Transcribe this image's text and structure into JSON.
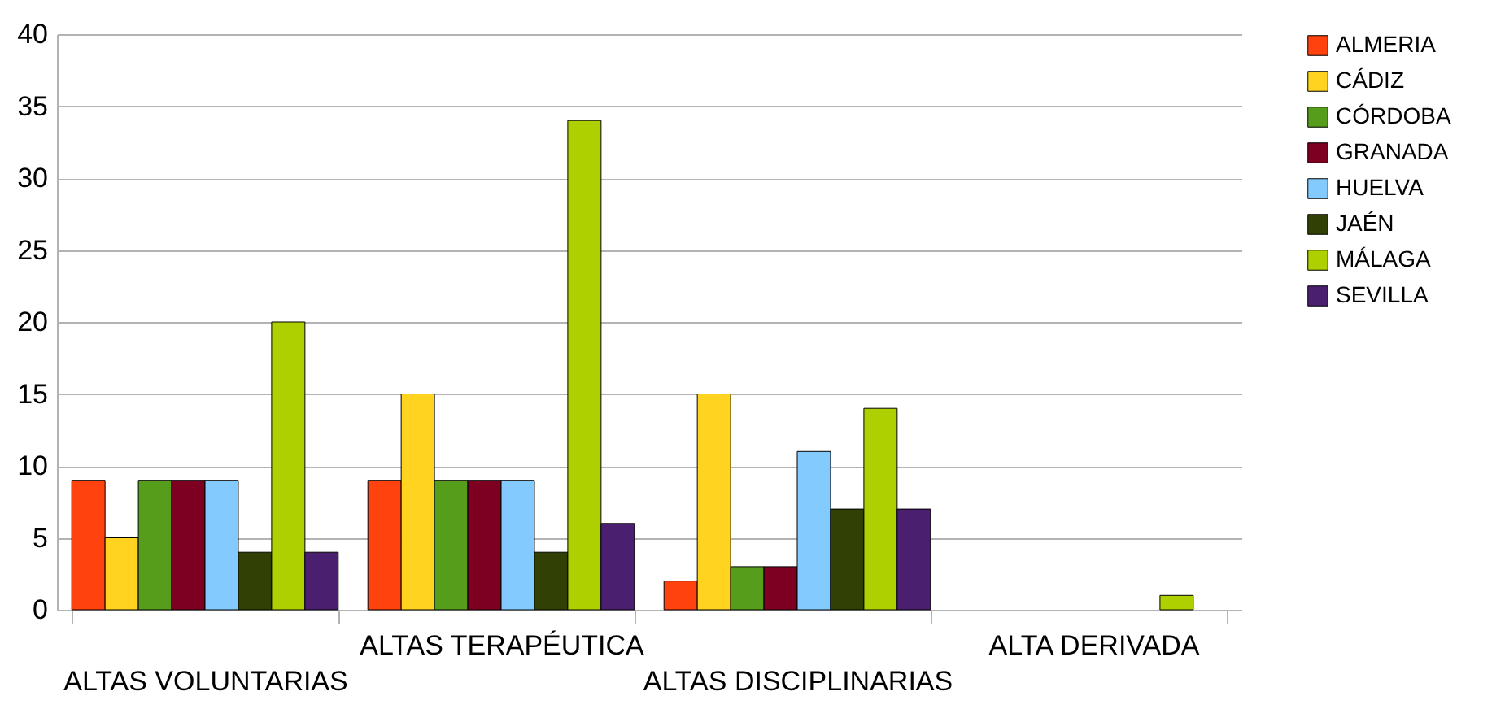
{
  "chart_data": {
    "type": "bar",
    "categories": [
      "ALTAS VOLUNTARIAS",
      "ALTAS TERAPÉUTICA",
      "ALTAS DISCIPLINARIAS",
      "ALTA DERIVADA"
    ],
    "series": [
      {
        "name": "ALMERIA",
        "color": "#ff420e",
        "values": [
          9,
          9,
          2,
          null
        ]
      },
      {
        "name": "CÁDIZ",
        "color": "#ffd320",
        "values": [
          5,
          15,
          15,
          null
        ]
      },
      {
        "name": "CÓRDOBA",
        "color": "#579d1c",
        "values": [
          9,
          9,
          3,
          null
        ]
      },
      {
        "name": "GRANADA",
        "color": "#7e0021",
        "values": [
          9,
          9,
          3,
          null
        ]
      },
      {
        "name": "HUELVA",
        "color": "#83caff",
        "values": [
          9,
          9,
          11,
          null
        ]
      },
      {
        "name": "JAÉN",
        "color": "#314004",
        "values": [
          4,
          4,
          7,
          null
        ]
      },
      {
        "name": "MÁLAGA",
        "color": "#aecf00",
        "values": [
          20,
          34,
          14,
          1
        ]
      },
      {
        "name": "SEVILLA",
        "color": "#4b1f6f",
        "values": [
          4,
          6,
          7,
          null
        ]
      }
    ],
    "ylim": [
      0,
      40
    ],
    "yticks": [
      0,
      5,
      10,
      15,
      20,
      25,
      30,
      35,
      40
    ],
    "grid": "y",
    "legend": "right"
  }
}
